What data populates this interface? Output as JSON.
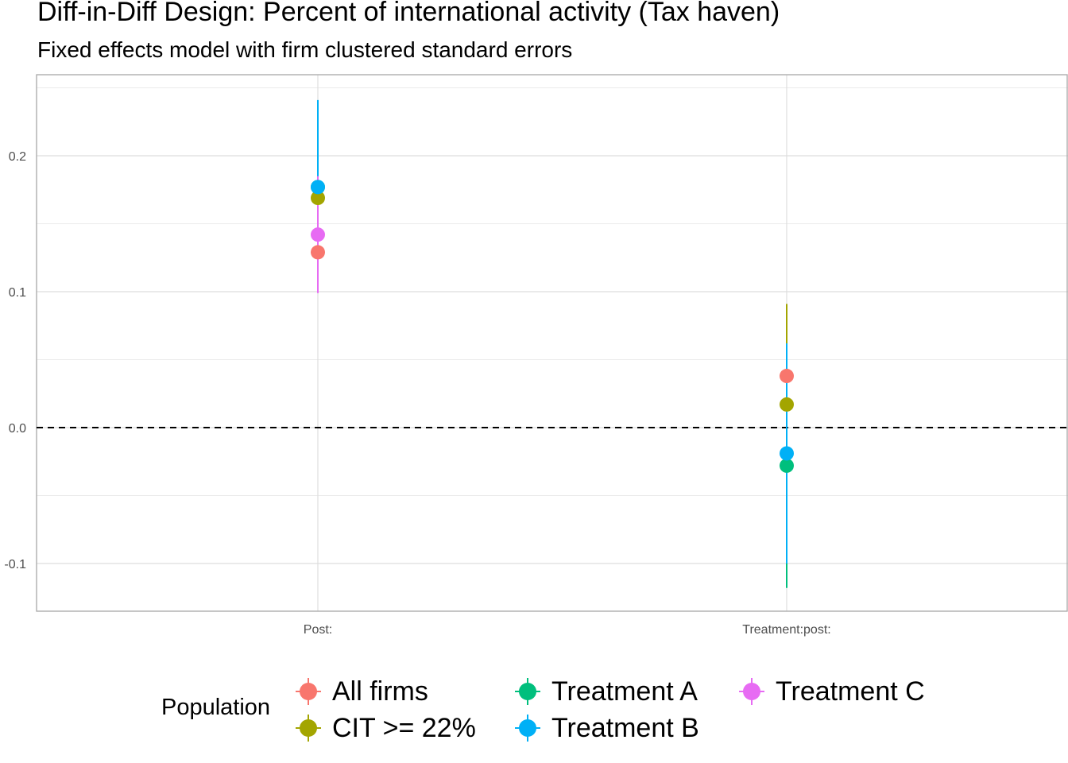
{
  "chart_data": {
    "type": "scatter",
    "subtype": "coefficient-plot-with-error-bars",
    "title": "Diff-in-Diff Design: Percent of international  activity (Tax haven)",
    "subtitle": "Fixed effects model with firm clustered standard errors",
    "xlabel": "",
    "ylabel": "",
    "categories": [
      "Post:",
      "Treatment:post:"
    ],
    "ylim": [
      -0.135,
      0.25
    ],
    "yticks": [
      -0.1,
      0.0,
      0.1,
      0.2
    ],
    "ytick_labels": [
      "-0.1",
      "0.0",
      "0.1",
      "0.2"
    ],
    "reference_line": {
      "y": 0,
      "style": "dashed"
    },
    "grid": true,
    "legend": {
      "title": "Population",
      "position": "bottom"
    },
    "series": [
      {
        "name": "All firms",
        "color": "#F8766D",
        "points": [
          {
            "x": "Post:",
            "y": 0.129,
            "low": 0.105,
            "high": 0.153
          },
          {
            "x": "Treatment:post:",
            "y": 0.038,
            "low": 0.004,
            "high": 0.072
          }
        ]
      },
      {
        "name": "CIT >= 22%",
        "color": "#A3A500",
        "points": [
          {
            "x": "Post:",
            "y": 0.169,
            "low": 0.135,
            "high": 0.203
          },
          {
            "x": "Treatment:post:",
            "y": 0.017,
            "low": -0.057,
            "high": 0.091
          }
        ]
      },
      {
        "name": "Treatment A",
        "color": "#00BF7D",
        "points": [
          {
            "x": "Post:",
            "y": 0.177,
            "low": 0.15,
            "high": 0.204
          },
          {
            "x": "Treatment:post:",
            "y": -0.028,
            "low": -0.118,
            "high": 0.062
          }
        ]
      },
      {
        "name": "Treatment B",
        "color": "#00B0F6",
        "points": [
          {
            "x": "Post:",
            "y": 0.177,
            "low": 0.113,
            "high": 0.241
          },
          {
            "x": "Treatment:post:",
            "y": -0.019,
            "low": -0.1,
            "high": 0.062
          }
        ]
      },
      {
        "name": "Treatment C",
        "color": "#E76BF3",
        "points": [
          {
            "x": "Post:",
            "y": 0.142,
            "low": 0.099,
            "high": 0.185
          }
        ]
      }
    ]
  }
}
